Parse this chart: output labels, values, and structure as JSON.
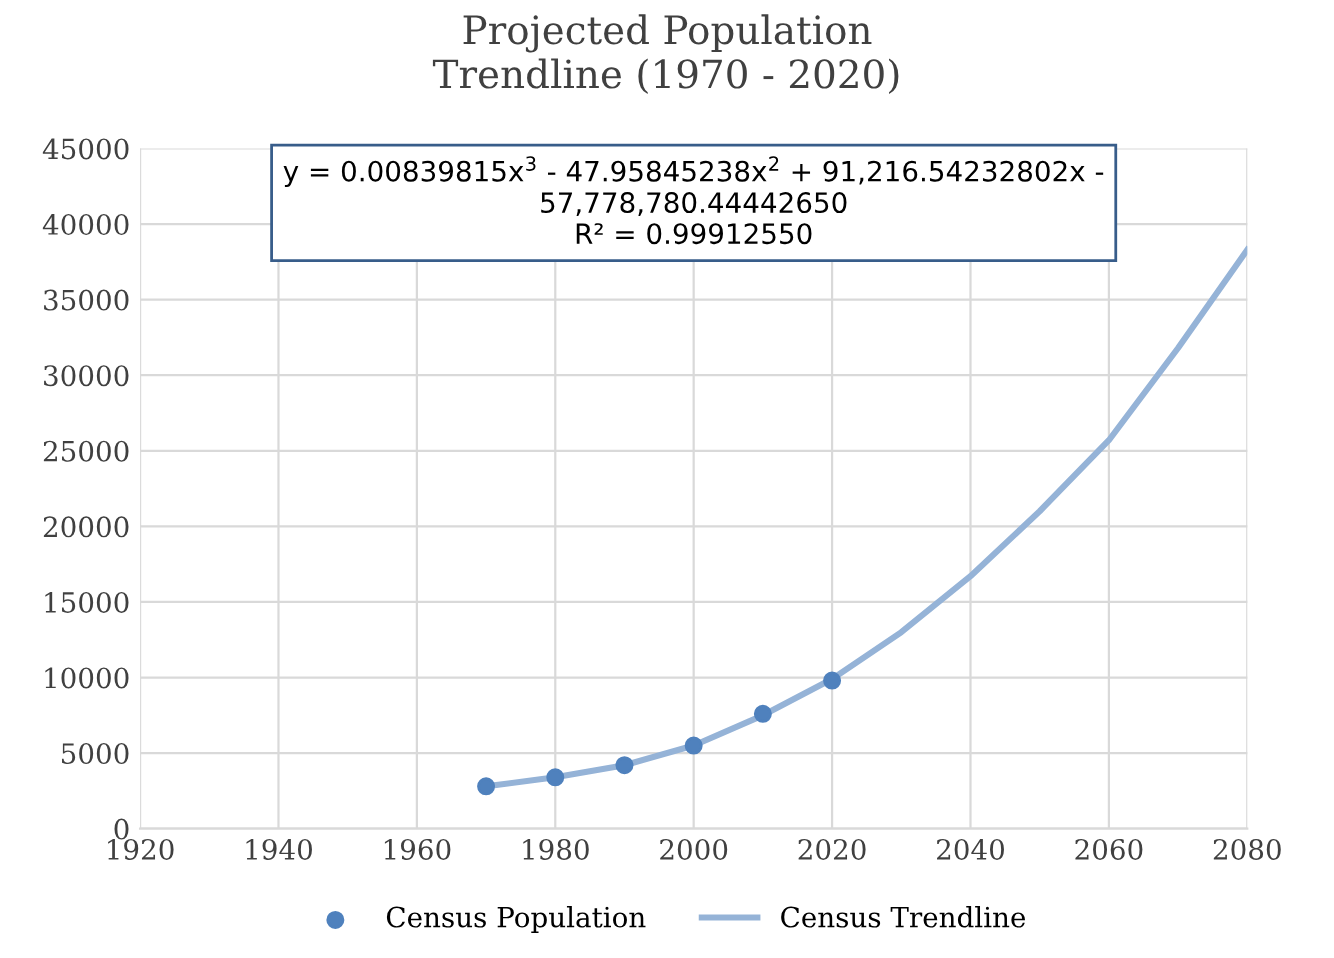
{
  "chart_data": {
    "type": "scatter",
    "title": "Projected Population\nTrendline (1970 - 2020)",
    "xlim": [
      1920,
      2080
    ],
    "xticks": [
      1920,
      1940,
      1960,
      1980,
      2000,
      2020,
      2040,
      2060,
      2080
    ],
    "ylim": [
      0,
      45000
    ],
    "yticks": [
      0,
      5000,
      10000,
      15000,
      20000,
      25000,
      30000,
      35000,
      40000,
      45000
    ],
    "grid": true,
    "legend": "bottom",
    "series": [
      {
        "name": "Census Population",
        "marker": "circle",
        "color": "#4f81bd",
        "x": [
          1970,
          1980,
          1990,
          2000,
          2010,
          2020
        ],
        "values": [
          2800,
          3400,
          4200,
          5500,
          7600,
          9800
        ]
      },
      {
        "name": "Census Trendline",
        "type": "line",
        "marker": "none",
        "color": "#95b3d7",
        "x": [
          1970,
          1980,
          1990,
          2000,
          2010,
          2020,
          2030,
          2040,
          2050,
          2060,
          2070,
          2080
        ],
        "values": [
          2800,
          3400,
          4200,
          5500,
          7500,
          9900,
          13000,
          16700,
          21000,
          25700,
          31800,
          38300
        ]
      }
    ],
    "annotations": [
      "y = 0.00839815x$^{3}$ - 47.95845238x$^{2}$ + 91,216.54232802x -\n57,778,780.44442650\nR² = 0.99912550"
    ]
  }
}
